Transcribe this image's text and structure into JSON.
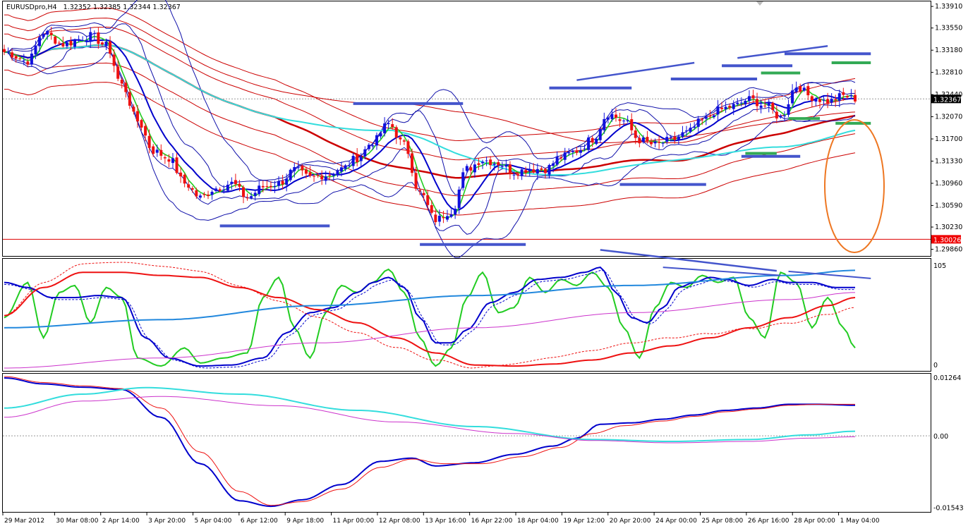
{
  "header": {
    "symbol": "EURUSDpro,H4",
    "ohlc": "1.32352 1.32385 1.32344 1.32367"
  },
  "colors": {
    "bull": "#1010dd",
    "bear": "#ee1111",
    "envelope_red": "#cc0000",
    "bollinger_blue": "#1010aa",
    "ma_green": "#22cc22",
    "ma_blue": "#0000cc",
    "ma_cyan": "#33dddd",
    "trend_blue": "#4455cc",
    "level_green": "#33aa55",
    "ellipse": "#ee7722",
    "magenta": "#cc33cc",
    "stoch_blue": "#2288dd"
  },
  "chart_data": [
    {
      "type": "candlestick",
      "panel": "price",
      "title": "EURUSDpro,H4",
      "y_ticks": [
        "1.33910",
        "1.33550",
        "1.33180",
        "1.32810",
        "1.32440",
        "1.32070",
        "1.31700",
        "1.31330",
        "1.30960",
        "1.30590",
        "1.30230",
        "1.29860"
      ],
      "ylim": [
        1.2976,
        1.3397
      ],
      "current_price_tag": "1.32367",
      "red_price_tag": "1.30026",
      "x_ticks": [
        "29 Mar 2012",
        "30 Mar 08:00",
        "2 Apr 14:00",
        "3 Apr 20:00",
        "5 Apr 04:00",
        "6 Apr 12:00",
        "9 Apr 18:00",
        "11 Apr 00:00",
        "12 Apr 08:00",
        "13 Apr 16:00",
        "16 Apr 22:00",
        "18 Apr 04:00",
        "19 Apr 12:00",
        "20 Apr 20:00",
        "24 Apr 00:00",
        "25 Apr 08:00",
        "26 Apr 16:00",
        "28 Apr 00:00",
        "1 May 04:00"
      ],
      "close_anchors": [
        [
          0,
          1.3315
        ],
        [
          6,
          1.33
        ],
        [
          10,
          1.3348
        ],
        [
          15,
          1.3328
        ],
        [
          22,
          1.3342
        ],
        [
          26,
          1.3326
        ],
        [
          30,
          1.326
        ],
        [
          34,
          1.32
        ],
        [
          38,
          1.315
        ],
        [
          42,
          1.3138
        ],
        [
          46,
          1.3096
        ],
        [
          50,
          1.3072
        ],
        [
          54,
          1.3088
        ],
        [
          58,
          1.3096
        ],
        [
          62,
          1.3072
        ],
        [
          66,
          1.309
        ],
        [
          70,
          1.3096
        ],
        [
          74,
          1.3118
        ],
        [
          78,
          1.3105
        ],
        [
          82,
          1.311
        ],
        [
          86,
          1.312
        ],
        [
          90,
          1.3138
        ],
        [
          94,
          1.3165
        ],
        [
          98,
          1.3195
        ],
        [
          102,
          1.316
        ],
        [
          106,
          1.308
        ],
        [
          110,
          1.3035
        ],
        [
          114,
          1.305
        ],
        [
          118,
          1.312
        ],
        [
          122,
          1.3135
        ],
        [
          126,
          1.313
        ],
        [
          130,
          1.3115
        ],
        [
          134,
          1.312
        ],
        [
          138,
          1.312
        ],
        [
          142,
          1.314
        ],
        [
          146,
          1.315
        ],
        [
          150,
          1.317
        ],
        [
          154,
          1.3212
        ],
        [
          158,
          1.32
        ],
        [
          162,
          1.3168
        ],
        [
          166,
          1.316
        ],
        [
          170,
          1.3168
        ],
        [
          174,
          1.318
        ],
        [
          178,
          1.32
        ],
        [
          182,
          1.3218
        ],
        [
          186,
          1.3225
        ],
        [
          190,
          1.3236
        ],
        [
          194,
          1.3226
        ],
        [
          198,
          1.3206
        ],
        [
          202,
          1.3258
        ],
        [
          206,
          1.324
        ],
        [
          210,
          1.3232
        ],
        [
          214,
          1.3242
        ],
        [
          217,
          1.3237
        ]
      ],
      "bar_count": 218
    },
    {
      "type": "line",
      "panel": "stochastic",
      "y_ticks": [
        "105",
        "0"
      ],
      "ylim": [
        0,
        105
      ],
      "series": [
        {
          "key": "fast_green",
          "values_anchor": [
            [
              0,
              50
            ],
            [
              6,
              85
            ],
            [
              10,
              30
            ],
            [
              14,
              75
            ],
            [
              18,
              82
            ],
            [
              22,
              45
            ],
            [
              26,
              80
            ],
            [
              30,
              70
            ],
            [
              34,
              10
            ],
            [
              40,
              2
            ],
            [
              46,
              20
            ],
            [
              50,
              5
            ],
            [
              56,
              10
            ],
            [
              62,
              15
            ],
            [
              66,
              70
            ],
            [
              70,
              90
            ],
            [
              74,
              40
            ],
            [
              78,
              10
            ],
            [
              82,
              55
            ],
            [
              86,
              82
            ],
            [
              90,
              75
            ],
            [
              94,
              85
            ],
            [
              98,
              98
            ],
            [
              102,
              75
            ],
            [
              106,
              30
            ],
            [
              110,
              2
            ],
            [
              114,
              20
            ],
            [
              118,
              70
            ],
            [
              122,
              95
            ],
            [
              126,
              55
            ],
            [
              130,
              60
            ],
            [
              134,
              90
            ],
            [
              138,
              75
            ],
            [
              142,
              88
            ],
            [
              146,
              82
            ],
            [
              150,
              95
            ],
            [
              154,
              80
            ],
            [
              158,
              40
            ],
            [
              162,
              10
            ],
            [
              166,
              60
            ],
            [
              170,
              85
            ],
            [
              174,
              80
            ],
            [
              178,
              92
            ],
            [
              182,
              85
            ],
            [
              186,
              90
            ],
            [
              190,
              50
            ],
            [
              194,
              30
            ],
            [
              198,
              95
            ],
            [
              202,
              85
            ],
            [
              206,
              40
            ],
            [
              210,
              70
            ],
            [
              214,
              40
            ],
            [
              217,
              20
            ]
          ]
        },
        {
          "key": "slow_blue",
          "values_anchor": [
            [
              0,
              85
            ],
            [
              6,
              80
            ],
            [
              12,
              70
            ],
            [
              18,
              70
            ],
            [
              24,
              72
            ],
            [
              30,
              70
            ],
            [
              36,
              30
            ],
            [
              42,
              10
            ],
            [
              50,
              2
            ],
            [
              58,
              3
            ],
            [
              66,
              10
            ],
            [
              72,
              35
            ],
            [
              78,
              55
            ],
            [
              84,
              60
            ],
            [
              90,
              75
            ],
            [
              94,
              85
            ],
            [
              98,
              90
            ],
            [
              102,
              80
            ],
            [
              106,
              50
            ],
            [
              110,
              25
            ],
            [
              114,
              25
            ],
            [
              118,
              38
            ],
            [
              124,
              65
            ],
            [
              130,
              75
            ],
            [
              136,
              88
            ],
            [
              142,
              90
            ],
            [
              148,
              95
            ],
            [
              152,
              100
            ],
            [
              156,
              75
            ],
            [
              160,
              50
            ],
            [
              164,
              45
            ],
            [
              168,
              60
            ],
            [
              172,
              80
            ],
            [
              176,
              85
            ],
            [
              180,
              90
            ],
            [
              184,
              88
            ],
            [
              190,
              82
            ],
            [
              196,
              88
            ],
            [
              200,
              85
            ],
            [
              206,
              85
            ],
            [
              212,
              80
            ],
            [
              217,
              80
            ]
          ]
        },
        {
          "key": "slow_red",
          "values_anchor": [
            [
              0,
              52
            ],
            [
              10,
              80
            ],
            [
              20,
              95
            ],
            [
              30,
              95
            ],
            [
              40,
              92
            ],
            [
              50,
              90
            ],
            [
              60,
              80
            ],
            [
              70,
              70
            ],
            [
              80,
              58
            ],
            [
              90,
              45
            ],
            [
              100,
              30
            ],
            [
              110,
              15
            ],
            [
              120,
              3
            ],
            [
              130,
              2
            ],
            [
              140,
              4
            ],
            [
              150,
              8
            ],
            [
              160,
              15
            ],
            [
              170,
              22
            ],
            [
              180,
              30
            ],
            [
              190,
              40
            ],
            [
              200,
              50
            ],
            [
              210,
              62
            ],
            [
              217,
              70
            ]
          ]
        },
        {
          "key": "long_blue",
          "values_anchor": [
            [
              0,
              40
            ],
            [
              40,
              48
            ],
            [
              80,
              62
            ],
            [
              120,
              72
            ],
            [
              160,
              82
            ],
            [
              200,
              92
            ],
            [
              217,
              97
            ]
          ]
        },
        {
          "key": "long_magenta",
          "values_anchor": [
            [
              0,
              0
            ],
            [
              40,
              10
            ],
            [
              80,
              25
            ],
            [
              120,
              40
            ],
            [
              160,
              55
            ],
            [
              200,
              68
            ],
            [
              217,
              75
            ]
          ]
        }
      ]
    },
    {
      "type": "line",
      "panel": "oscillator",
      "y_ticks": [
        "0.01264",
        "0.00",
        "-0.01543"
      ],
      "ylim": [
        -0.0158,
        0.0128
      ],
      "series": [
        {
          "key": "osc_blue",
          "values_anchor": [
            [
              0,
              0.0125
            ],
            [
              10,
              0.0112
            ],
            [
              20,
              0.0105
            ],
            [
              30,
              0.01
            ],
            [
              40,
              0.004
            ],
            [
              50,
              -0.006
            ],
            [
              60,
              -0.014
            ],
            [
              68,
              -0.0152
            ],
            [
              76,
              -0.0138
            ],
            [
              86,
              -0.0105
            ],
            [
              96,
              -0.0055
            ],
            [
              104,
              -0.0048
            ],
            [
              110,
              -0.0065
            ],
            [
              120,
              -0.0058
            ],
            [
              130,
              -0.004
            ],
            [
              140,
              -0.0022
            ],
            [
              146,
              -0.0005
            ],
            [
              152,
              0.0025
            ],
            [
              160,
              0.0028
            ],
            [
              168,
              0.0036
            ],
            [
              176,
              0.0045
            ],
            [
              184,
              0.0055
            ],
            [
              192,
              0.006
            ],
            [
              200,
              0.0068
            ],
            [
              208,
              0.0068
            ],
            [
              217,
              0.0066
            ]
          ]
        },
        {
          "key": "osc_red",
          "values_anchor": [
            [
              0,
              0.0128
            ],
            [
              10,
              0.0115
            ],
            [
              20,
              0.0108
            ],
            [
              30,
              0.0102
            ],
            [
              40,
              0.006
            ],
            [
              50,
              -0.0035
            ],
            [
              60,
              -0.012
            ],
            [
              68,
              -0.015
            ],
            [
              76,
              -0.0142
            ],
            [
              86,
              -0.0115
            ],
            [
              96,
              -0.0068
            ],
            [
              104,
              -0.005
            ],
            [
              112,
              -0.006
            ],
            [
              122,
              -0.006
            ],
            [
              132,
              -0.0045
            ],
            [
              142,
              -0.0025
            ],
            [
              150,
              0.0005
            ],
            [
              158,
              0.0022
            ],
            [
              168,
              0.0032
            ],
            [
              176,
              0.0042
            ],
            [
              184,
              0.0052
            ],
            [
              192,
              0.0058
            ],
            [
              200,
              0.0066
            ],
            [
              208,
              0.0068
            ],
            [
              217,
              0.0068
            ]
          ]
        },
        {
          "key": "osc_cyan",
          "values_anchor": [
            [
              0,
              0.006
            ],
            [
              20,
              0.009
            ],
            [
              36,
              0.0104
            ],
            [
              60,
              0.009
            ],
            [
              90,
              0.0055
            ],
            [
              120,
              0.002
            ],
            [
              150,
              -0.0008
            ],
            [
              170,
              -0.0012
            ],
            [
              190,
              -0.0008
            ],
            [
              205,
              0.0002
            ],
            [
              217,
              0.001
            ]
          ]
        },
        {
          "key": "osc_magenta",
          "values_anchor": [
            [
              0,
              0.004
            ],
            [
              20,
              0.0075
            ],
            [
              40,
              0.0085
            ],
            [
              70,
              0.0065
            ],
            [
              100,
              0.003
            ],
            [
              130,
              0.0005
            ],
            [
              150,
              -0.001
            ],
            [
              170,
              -0.0015
            ],
            [
              190,
              -0.0012
            ],
            [
              205,
              -0.0005
            ],
            [
              217,
              -0.0002
            ]
          ]
        }
      ]
    }
  ]
}
